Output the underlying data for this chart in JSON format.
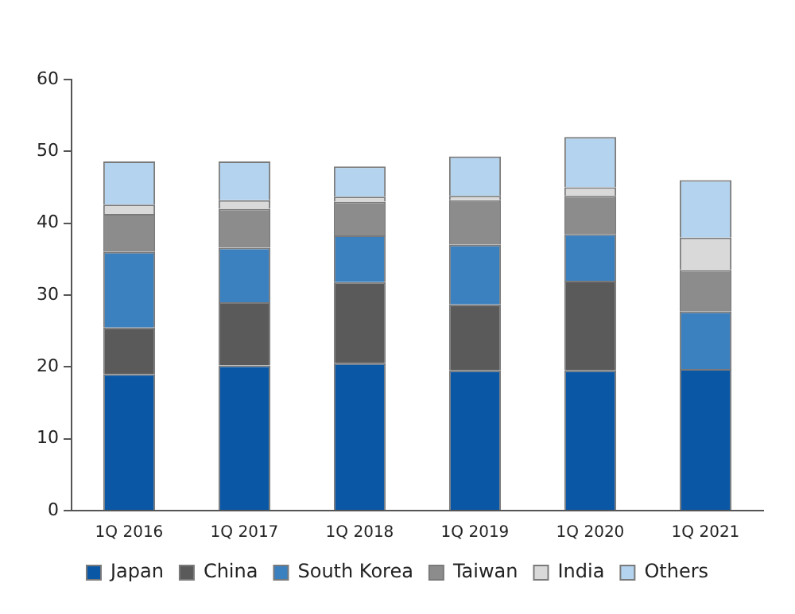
{
  "chart_data": {
    "type": "bar",
    "stacked": true,
    "categories": [
      "1Q 2016",
      "1Q 2017",
      "1Q 2018",
      "1Q 2019",
      "1Q 2020",
      "1Q 2021"
    ],
    "series": [
      {
        "name": "Japan",
        "color": "#0a57a6",
        "values": [
          19,
          20.2,
          20.5,
          19.5,
          19.5,
          19.7
        ]
      },
      {
        "name": "China",
        "color": "#5a5a5a",
        "values": [
          6.5,
          8.8,
          11.3,
          9.2,
          12.5,
          0
        ]
      },
      {
        "name": "South Korea",
        "color": "#3b80bf",
        "values": [
          10.5,
          7.6,
          6.5,
          8.3,
          6.5,
          8
        ]
      },
      {
        "name": "Taiwan",
        "color": "#8c8c8c",
        "values": [
          5.3,
          5.4,
          4.7,
          6.2,
          5.3,
          5.8
        ]
      },
      {
        "name": "India",
        "color": "#d9d9d9",
        "values": [
          1.3,
          1.2,
          0.7,
          0.6,
          1.2,
          4.5
        ]
      },
      {
        "name": "Others",
        "color": "#b4d3ee",
        "values": [
          6,
          5.4,
          4.2,
          5.5,
          7,
          8
        ]
      }
    ],
    "ylim": [
      0,
      60
    ],
    "yticks": [
      0,
      10,
      20,
      30,
      40,
      50,
      60
    ],
    "grid": false,
    "legend": "bottom"
  }
}
